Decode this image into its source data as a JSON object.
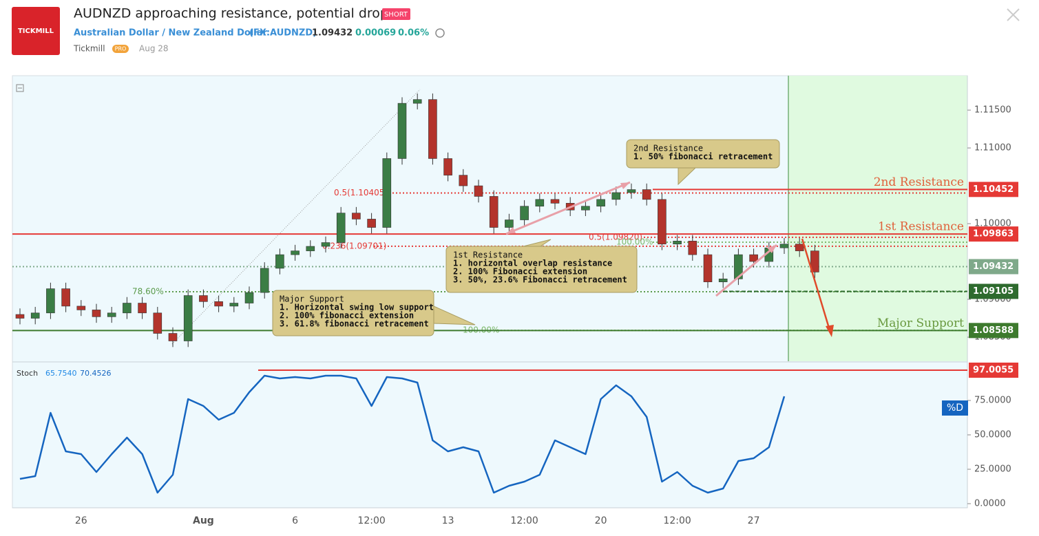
{
  "header": {
    "logo": "TICKMILL",
    "title": "AUDNZD approaching resistance, potential drop!",
    "badge": "SHORT",
    "instrument": "Australian Dollar / New Zealand Dollar",
    "symbol": "(FX:AUDNZD)",
    "price": "1.09432",
    "change": "0.00069",
    "change_pct": "0.06%",
    "author": "Tickmill",
    "author_badge": "PRO",
    "date": "Aug 28"
  },
  "chart_data": {
    "type": "candlestick",
    "categories": [
      null,
      null,
      null,
      null,
      "26",
      null,
      null,
      null,
      null,
      null,
      null,
      null,
      "Aug",
      null,
      null,
      null,
      null,
      null,
      "6",
      null,
      null,
      null,
      null,
      "12:00",
      null,
      null,
      null,
      null,
      "13",
      null,
      null,
      null,
      null,
      "12:00",
      null,
      null,
      null,
      null,
      "20",
      null,
      null,
      null,
      null,
      "12:00",
      null,
      null,
      null,
      null,
      "27",
      null,
      null,
      null,
      null
    ],
    "open": [
      1.088,
      1.0875,
      1.0882,
      1.0914,
      1.0891,
      1.0886,
      1.0877,
      1.0882,
      1.0895,
      1.0882,
      1.0855,
      1.0845,
      1.0905,
      1.0897,
      1.0891,
      1.0895,
      1.0909,
      1.0941,
      1.0959,
      1.0964,
      1.097,
      1.0975,
      1.1014,
      1.1006,
      1.0995,
      1.1086,
      1.1159,
      1.1164,
      1.1086,
      1.1064,
      1.105,
      1.1036,
      1.0995,
      1.1005,
      1.1023,
      1.1032,
      1.1027,
      1.1018,
      1.1023,
      1.1032,
      1.1041,
      1.1045,
      1.1032,
      1.0973,
      1.0977,
      1.0959,
      1.0923,
      1.0927,
      1.0959,
      1.095,
      1.0968,
      1.0973,
      1.0964
    ],
    "high": [
      1.0888,
      1.089,
      1.0922,
      1.0922,
      1.0899,
      1.0894,
      1.089,
      1.0903,
      1.0903,
      1.089,
      1.0863,
      1.0913,
      1.0913,
      1.0905,
      1.0903,
      1.0917,
      1.0949,
      1.0967,
      1.0972,
      1.0978,
      1.0983,
      1.1022,
      1.1022,
      1.1014,
      1.1094,
      1.1167,
      1.1172,
      1.1172,
      1.1094,
      1.1072,
      1.1058,
      1.1044,
      1.1013,
      1.1031,
      1.104,
      1.104,
      1.1035,
      1.1031,
      1.104,
      1.1049,
      1.1053,
      1.1053,
      1.104,
      1.0985,
      1.0985,
      1.0967,
      1.0935,
      1.0967,
      1.0967,
      1.0976,
      1.0981,
      1.0981,
      1.0972
    ],
    "low": [
      1.0867,
      1.0867,
      1.0874,
      1.0883,
      1.0878,
      1.0869,
      1.0869,
      1.0874,
      1.0874,
      1.0847,
      1.0837,
      1.0837,
      1.0889,
      1.0883,
      1.0883,
      1.0887,
      1.0901,
      1.0933,
      1.0951,
      1.0956,
      1.0962,
      1.0967,
      1.0998,
      1.0987,
      1.0987,
      1.1078,
      1.1151,
      1.1078,
      1.1056,
      1.1042,
      1.1028,
      1.0987,
      1.0987,
      1.0997,
      1.1015,
      1.1019,
      1.101,
      1.101,
      1.1015,
      1.1024,
      1.1033,
      1.1024,
      1.0965,
      1.0965,
      1.0951,
      1.0915,
      1.0915,
      1.0919,
      1.0942,
      1.0942,
      1.096,
      1.0956,
      1.0928
    ],
    "close": [
      1.0875,
      1.0882,
      1.0914,
      1.0891,
      1.0886,
      1.0877,
      1.0882,
      1.0895,
      1.0882,
      1.0855,
      1.0845,
      1.0905,
      1.0897,
      1.0891,
      1.0895,
      1.0909,
      1.0941,
      1.0959,
      1.0964,
      1.097,
      1.0975,
      1.1014,
      1.1006,
      1.0995,
      1.1086,
      1.1159,
      1.1164,
      1.1086,
      1.1064,
      1.105,
      1.1036,
      1.0995,
      1.1005,
      1.1023,
      1.1032,
      1.1027,
      1.1018,
      1.1023,
      1.1032,
      1.1041,
      1.1045,
      1.1032,
      1.0973,
      1.0977,
      1.0959,
      1.0923,
      1.0927,
      1.0959,
      1.095,
      1.0968,
      1.0973,
      1.0964,
      1.0936
    ],
    "up_color": "#3b7d45",
    "down_color": "#b3342c",
    "ylim": [
      1.08182,
      1.11955
    ],
    "yticks": [
      {
        "value": 1.085,
        "label": "1.08500"
      },
      {
        "value": 1.09,
        "label": "1.09000"
      },
      {
        "value": 1.1,
        "label": "1.10000"
      },
      {
        "value": 1.11,
        "label": "1.11000"
      },
      {
        "value": 1.115,
        "label": "1.11500"
      }
    ],
    "levels": [
      {
        "value": 1.10452,
        "color": "#e53935",
        "style": "solid",
        "name": "2nd Resistance"
      },
      {
        "value": 1.09863,
        "color": "#e53935",
        "style": "solid",
        "name": "1st Resistance"
      },
      {
        "value": 1.09432,
        "color": "#7fa98a",
        "style": "dotted"
      },
      {
        "value": 1.09105,
        "color": "#2e6b2e",
        "style": "dashed"
      },
      {
        "value": 1.08588,
        "color": "#3d7a2d",
        "style": "solid",
        "name": "Major Support"
      }
    ],
    "fib_levels": [
      {
        "label": "0.5(1.10405)",
        "value": 1.10405,
        "color": "#e53935"
      },
      {
        "label": "0.236(1.09701)",
        "value": 1.09701,
        "color": "#e53935"
      },
      {
        "label": "78.60%",
        "value": 1.091,
        "color": "#5a9a4a"
      },
      {
        "label": "100.00%",
        "value": 1.0859,
        "color": "#7cb86a"
      },
      {
        "label": "0.5(1.09820)",
        "value": 1.0982,
        "color": "#e53935"
      },
      {
        "label": "100.00%",
        "value": 1.09755,
        "color": "#7cb86a"
      }
    ],
    "annotations": [
      {
        "title": "2nd Resistance",
        "lines": [
          "1. 50% fibonacci retracement"
        ]
      },
      {
        "title": "1st Resistance",
        "lines": [
          "1. horizontal overlap resistance",
          "2. 100% Fibonacci extension",
          "3. 50%, 23.6% Fibonacci retracement"
        ]
      },
      {
        "title": "Major Support",
        "lines": [
          "1. Horizontal swing low support",
          "2. 100% fibonacci extension",
          "3. 61.8% fibonacci retracement"
        ]
      }
    ],
    "stoch": {
      "name": "Stoch",
      "k_label": "65.7540",
      "d_label": "70.4526",
      "badge": "%D",
      "color": "#1565c0",
      "values": [
        18,
        20,
        66,
        38,
        36,
        23,
        36,
        48,
        36,
        8,
        21,
        76,
        71,
        61,
        66,
        81,
        93,
        91,
        92,
        91,
        93,
        93,
        91,
        71,
        92,
        91,
        88,
        46,
        38,
        41,
        38,
        8,
        13,
        16,
        21,
        46,
        41,
        36,
        76,
        86,
        78,
        63,
        16,
        23,
        13,
        8,
        11,
        31,
        33,
        41,
        78,
        null,
        null
      ],
      "ylim": [
        -3,
        102.5
      ],
      "yticks": [
        {
          "value": 0,
          "label": "0.0000"
        },
        {
          "value": 25,
          "label": "25.0000"
        },
        {
          "value": 50,
          "label": "50.0000"
        },
        {
          "value": 75,
          "label": "75.0000"
        }
      ],
      "level": 97.0055
    }
  }
}
